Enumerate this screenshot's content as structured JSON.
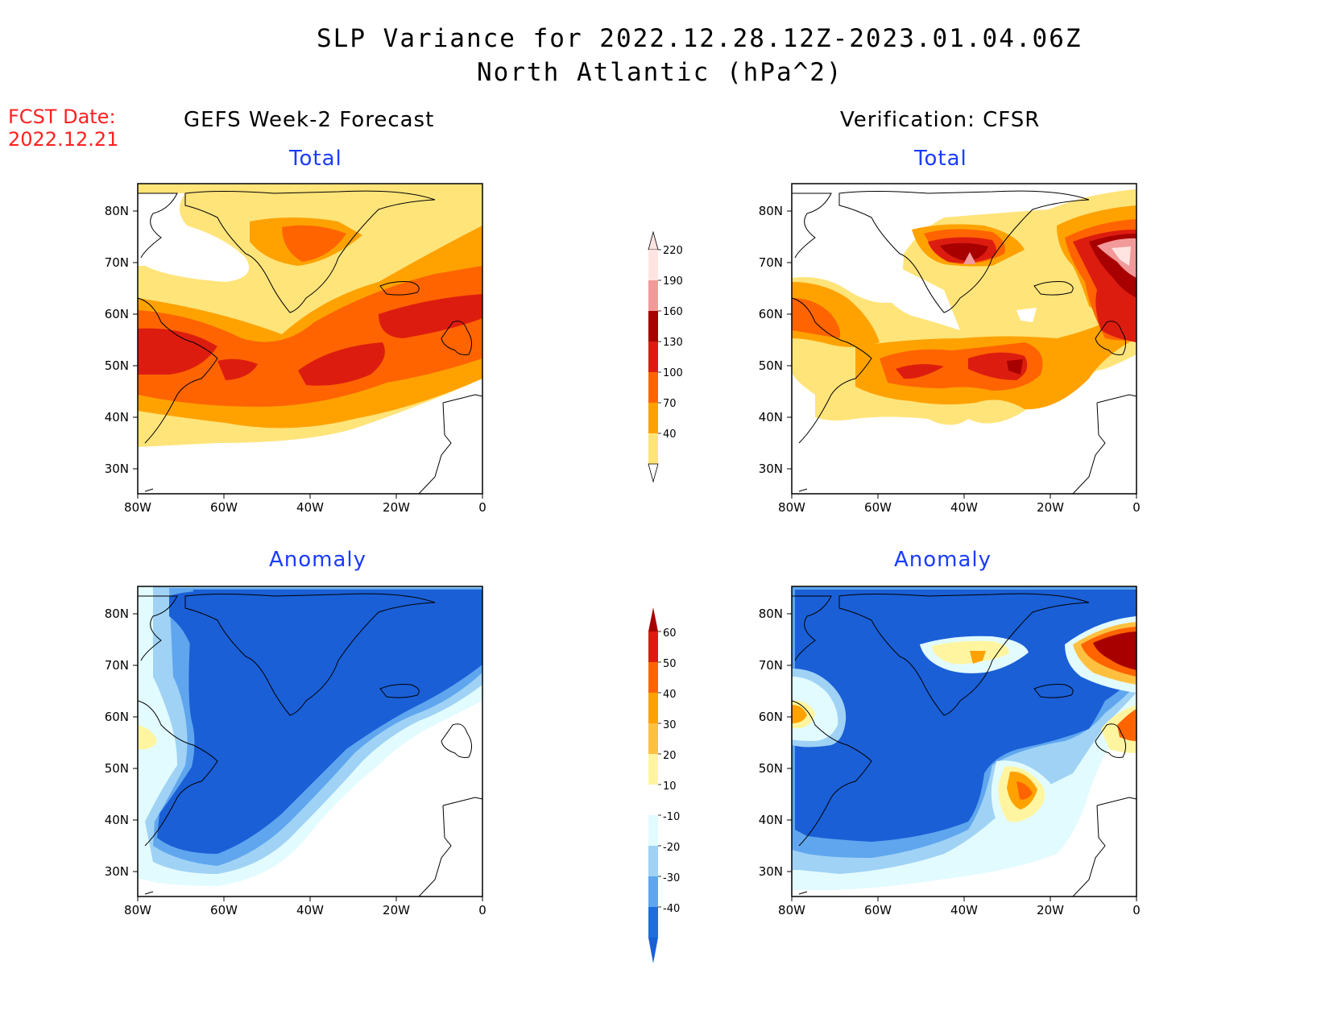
{
  "header": {
    "title_line1": "SLP Variance for 2022.12.28.12Z-2023.01.04.06Z",
    "title_line2": "North Atlantic (hPa^2)",
    "fcst_label": "FCST Date:",
    "fcst_date": "2022.12.21"
  },
  "columns": {
    "left": "GEFS Week-2 Forecast",
    "right": "Verification: CFSR"
  },
  "panel_titles": {
    "total": "Total",
    "anomaly": "Anomaly"
  },
  "axes": {
    "lat_labels": [
      "80N",
      "70N",
      "60N",
      "50N",
      "40N",
      "30N"
    ],
    "lon_labels": [
      "80W",
      "60W",
      "40W",
      "20W",
      "0"
    ]
  },
  "legends": {
    "total": {
      "labels": [
        "220",
        "190",
        "160",
        "130",
        "100",
        "70",
        "40"
      ],
      "colors": [
        "#ffe4e1",
        "#f29a9a",
        "#a80000",
        "#dd1c10",
        "#ff6400",
        "#ffa200",
        "#ffe47a"
      ]
    },
    "anomaly": {
      "labels": [
        "60",
        "50",
        "40",
        "30",
        "20",
        "10",
        "-10",
        "-20",
        "-30",
        "-40"
      ],
      "colors": [
        "#a80000",
        "#dd1c10",
        "#ff6400",
        "#ffa200",
        "#ffc040",
        "#fff5a0",
        "#ffffff",
        "#e2fbff",
        "#9fd2f5",
        "#5fa6ee",
        "#1f6ddc",
        "#1a5fd6"
      ]
    }
  },
  "colors": {
    "c40": "#ffe47a",
    "c70": "#ffa200",
    "c100": "#ff6400",
    "c130": "#dd1c10",
    "c160": "#a80000",
    "c190": "#f29a9a",
    "a_m40": "#1a5fd6",
    "a_m30": "#5fa6ee",
    "a_m20": "#9fd2f5",
    "a_m10": "#e2fbff"
  }
}
